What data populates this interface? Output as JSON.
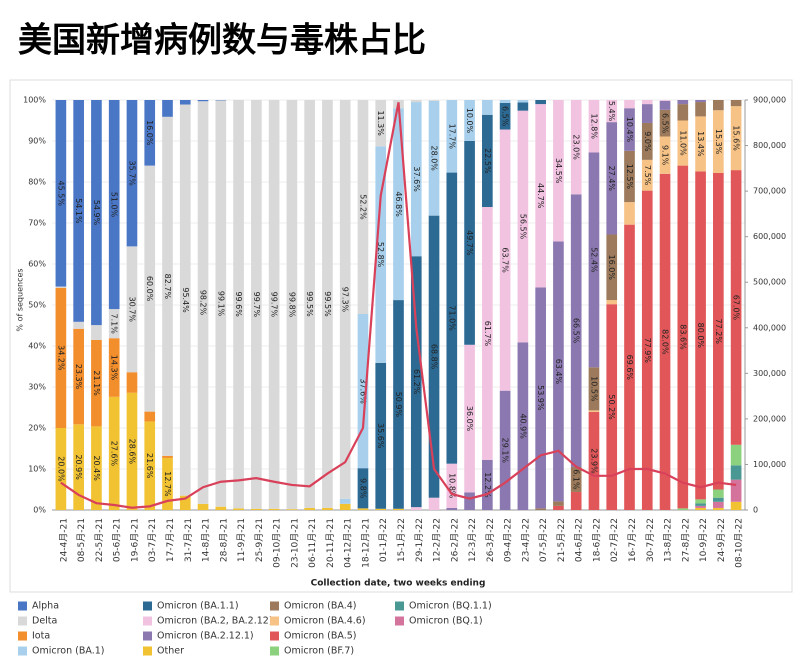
{
  "chart_data": {
    "type": "stacked_bar_line",
    "title": "美国新增病例数与毒株占比",
    "ylabel": "% of sequences",
    "xlabel": "Collection date, two weeks ending",
    "categories": [
      "24-4月-21",
      "08-5月-21",
      "22-5月-21",
      "05-6月-21",
      "19-6月-21",
      "03-7月-21",
      "17-7月-21",
      "31-7月-21",
      "14-8月-21",
      "28-8月-21",
      "11-9月-21",
      "25-9月-21",
      "09-10月-21",
      "23-10月-21",
      "06-11月-21",
      "20-11月-21",
      "04-12月-21",
      "18-12月-21",
      "01-1月-22",
      "15-1月-22",
      "29-1月-22",
      "12-2月-22",
      "26-2月-22",
      "12-3月-22",
      "26-3月-22",
      "09-4月-22",
      "23-4月-22",
      "07-5月-22",
      "21-5月-22",
      "04-6月-22",
      "18-6月-22",
      "02-7月-22",
      "16-7月-22",
      "30-7月-22",
      "13-8月-22",
      "27-8月-22",
      "10-9月-22",
      "24-9月-22",
      "08-10月-22"
    ],
    "ylim": [
      0,
      100
    ],
    "yticks": [
      {
        "value": 0,
        "label": "0%"
      },
      {
        "value": 10,
        "label": "10%"
      },
      {
        "value": 20,
        "label": "20%"
      },
      {
        "value": 30,
        "label": "30%"
      },
      {
        "value": 40,
        "label": "40%"
      },
      {
        "value": 50,
        "label": "50%"
      },
      {
        "value": 60,
        "label": "60%"
      },
      {
        "value": 70,
        "label": "70%"
      },
      {
        "value": 80,
        "label": "80%"
      },
      {
        "value": 90,
        "label": "90%"
      },
      {
        "value": 100,
        "label": "100%"
      }
    ],
    "y2lim": [
      0,
      900000
    ],
    "y2ticks": [
      0,
      {
        "value": 100000,
        "label": "100,000"
      },
      {
        "value": 200000,
        "label": "200,000"
      },
      {
        "value": 300000,
        "label": "300,000"
      },
      {
        "value": 400000,
        "label": "400,000"
      },
      {
        "value": 500000,
        "label": "500,000"
      },
      {
        "value": 600000,
        "label": "600,000"
      },
      {
        "value": 700000,
        "label": "700,000"
      },
      {
        "value": 800000,
        "label": "800,000"
      },
      {
        "value": 900000,
        "label": "900,000"
      }
    ],
    "series": [
      {
        "name": "Alpha",
        "color": "#4a76c6",
        "values": [
          45.5,
          54.1,
          54.9,
          51.0,
          35.7,
          16.0,
          4.1,
          1.1,
          0.3,
          0.1,
          0,
          0,
          0,
          0,
          0,
          0,
          0,
          0,
          0,
          0,
          0,
          0,
          0,
          0,
          0,
          0,
          0,
          0,
          0,
          0,
          0,
          0,
          0,
          0,
          0,
          0,
          0,
          0,
          0
        ],
        "value_labels": [
          "45.5%",
          "54.1%",
          "54.9%",
          "51.0%",
          "35.7%",
          "16.0%",
          null,
          null,
          null,
          null,
          null,
          null,
          null,
          null,
          null,
          null,
          null,
          null,
          null,
          null,
          null,
          null,
          null,
          null,
          null,
          null,
          null,
          null,
          null,
          null,
          null,
          null,
          null,
          null,
          null,
          null,
          null,
          null,
          null
        ]
      },
      {
        "name": "Delta",
        "color": "#d9d9d9",
        "values": [
          0.3,
          1.7,
          3.6,
          7.1,
          30.7,
          60.0,
          82.7,
          95.4,
          98.2,
          99.1,
          99.6,
          99.7,
          99.7,
          99.8,
          99.5,
          99.5,
          97.3,
          52.2,
          11.3,
          2.0,
          0.5,
          0.2,
          0,
          0,
          0,
          0,
          0,
          0,
          0,
          0,
          0,
          0,
          0,
          0,
          0,
          0,
          0,
          0,
          0
        ],
        "value_labels": [
          null,
          null,
          null,
          "7.1%",
          "30.7%",
          "60.0%",
          "82.7%",
          "95.4%",
          "98.2%",
          "99.1%",
          "99.6%",
          "99.7%",
          "99.7%",
          "99.8%",
          "99.5%",
          "99.5%",
          "97.3%",
          "52.2%",
          "11.3%",
          null,
          null,
          null,
          null,
          null,
          null,
          null,
          null,
          null,
          null,
          null,
          null,
          null,
          null,
          null,
          null,
          null,
          null,
          null,
          null
        ]
      },
      {
        "name": "Iota",
        "color": "#f28e2b",
        "values": [
          34.2,
          23.3,
          21.1,
          14.3,
          5.0,
          2.4,
          0.5,
          0,
          0,
          0,
          0,
          0,
          0,
          0,
          0,
          0,
          0,
          0,
          0,
          0,
          0,
          0,
          0,
          0,
          0,
          0,
          0,
          0,
          0,
          0,
          0,
          0,
          0,
          0,
          0,
          0,
          0,
          0,
          0
        ],
        "value_labels": [
          "34.2%",
          "23.3%",
          "21.1%",
          "14.3%",
          null,
          null,
          null,
          null,
          null,
          null,
          null,
          null,
          null,
          null,
          null,
          null,
          null,
          null,
          null,
          null,
          null,
          null,
          null,
          null,
          null,
          null,
          null,
          null,
          null,
          null,
          null,
          null,
          null,
          null,
          null,
          null,
          null,
          null,
          null
        ]
      },
      {
        "name": "Omicron (BA.1)",
        "color": "#a8d0ec",
        "values": [
          0,
          0,
          0,
          0,
          0,
          0,
          0,
          0,
          0,
          0,
          0,
          0,
          0,
          0,
          0,
          0,
          1.2,
          37.6,
          52.8,
          46.8,
          37.6,
          28.0,
          17.7,
          10.0,
          3.6,
          0.7,
          0.6,
          0,
          0,
          0,
          0,
          0,
          0,
          0,
          0,
          0,
          0,
          0,
          0
        ],
        "value_labels": [
          null,
          null,
          null,
          null,
          null,
          null,
          null,
          null,
          null,
          null,
          null,
          null,
          null,
          null,
          null,
          null,
          null,
          "37.6%",
          "52.8%",
          "46.8%",
          "37.6%",
          "28.0%",
          "17.7%",
          "10.0%",
          null,
          null,
          null,
          null,
          null,
          null,
          null,
          null,
          null,
          null,
          null,
          null,
          null,
          null,
          null
        ]
      },
      {
        "name": "Omicron (BA.1.1)",
        "color": "#2c6a94",
        "values": [
          0,
          0,
          0,
          0,
          0,
          0,
          0,
          0,
          0,
          0,
          0,
          0,
          0,
          0,
          0,
          0,
          0,
          9.8,
          35.6,
          50.9,
          61.2,
          68.8,
          71.0,
          49.7,
          22.5,
          6.5,
          2.0,
          1.0,
          0,
          0,
          0,
          0,
          0,
          0,
          0,
          0,
          0,
          0,
          0
        ],
        "value_labels": [
          null,
          null,
          null,
          null,
          null,
          null,
          null,
          null,
          null,
          null,
          null,
          null,
          null,
          null,
          null,
          null,
          null,
          "9.8%",
          "35.6%",
          "50.9%",
          "61.2%",
          "68.8%",
          "71.0%",
          "49.7%",
          "22.5%",
          "6.5%",
          null,
          null,
          null,
          null,
          null,
          null,
          null,
          null,
          null,
          null,
          null,
          null,
          null
        ]
      },
      {
        "name": "Omicron (BA.2, BA.2.12)",
        "color": "#f1c3e1",
        "values": [
          0,
          0,
          0,
          0,
          0,
          0,
          0,
          0,
          0,
          0,
          0,
          0,
          0,
          0,
          0,
          0,
          0,
          0,
          0,
          0,
          0.7,
          3.0,
          10.8,
          36.0,
          61.7,
          63.7,
          56.5,
          44.7,
          34.5,
          23.0,
          12.8,
          5.4,
          2.0,
          1.0,
          0.2,
          0,
          0,
          0,
          0
        ],
        "value_labels": [
          null,
          null,
          null,
          null,
          null,
          null,
          null,
          null,
          null,
          null,
          null,
          null,
          null,
          null,
          null,
          null,
          null,
          null,
          null,
          null,
          null,
          null,
          "10.8%",
          "36.0%",
          "61.7%",
          "63.7%",
          "56.5%",
          "44.7%",
          "34.5%",
          "23.0%",
          "12.8%",
          "5.4%",
          null,
          null,
          null,
          null,
          null,
          null,
          null
        ]
      },
      {
        "name": "Omicron (BA.2.12.1)",
        "color": "#8b78b0",
        "values": [
          0,
          0,
          0,
          0,
          0,
          0,
          0,
          0,
          0,
          0,
          0,
          0,
          0,
          0,
          0,
          0,
          0,
          0,
          0,
          0,
          0,
          0,
          0.5,
          4.3,
          12.2,
          29.1,
          40.9,
          53.9,
          63.4,
          66.5,
          52.4,
          27.4,
          10.4,
          4.6,
          2.2,
          1.0,
          0.5,
          0,
          0
        ],
        "value_labels": [
          null,
          null,
          null,
          null,
          null,
          null,
          null,
          null,
          null,
          null,
          null,
          null,
          null,
          null,
          null,
          null,
          null,
          null,
          null,
          null,
          null,
          null,
          null,
          null,
          "12.2%",
          "29.1%",
          "40.9%",
          "53.9%",
          "63.4%",
          "66.5%",
          "52.4%",
          "27.4%",
          "10.4%",
          null,
          null,
          null,
          null,
          null,
          null
        ]
      },
      {
        "name": "Other",
        "color": "#f1c232",
        "values": [
          20.0,
          20.9,
          20.4,
          27.6,
          28.6,
          21.6,
          12.7,
          3.5,
          1.5,
          0.8,
          0.4,
          0.3,
          0.3,
          0.2,
          0.5,
          0.5,
          1.5,
          0.4,
          0.3,
          0.3,
          0,
          0,
          0,
          0,
          0,
          0,
          0,
          0,
          0,
          0,
          0,
          0,
          0,
          0,
          0,
          0,
          0.5,
          0.5,
          2.0
        ],
        "value_labels": [
          "20.0%",
          "20.9%",
          "20.4%",
          "27.6%",
          "28.6%",
          "21.6%",
          "12.7%",
          null,
          null,
          null,
          null,
          null,
          null,
          null,
          null,
          null,
          null,
          null,
          null,
          null,
          null,
          null,
          null,
          null,
          null,
          null,
          null,
          null,
          null,
          null,
          null,
          null,
          null,
          null,
          null,
          null,
          null,
          null,
          null
        ]
      },
      {
        "name": "Omicron (BA.4)",
        "color": "#9c7a5b",
        "values": [
          0,
          0,
          0,
          0,
          0,
          0,
          0,
          0,
          0,
          0,
          0,
          0,
          0,
          0,
          0,
          0,
          0,
          0,
          0,
          0,
          0,
          0,
          0,
          0,
          0,
          0,
          0,
          0.4,
          1.1,
          6.1,
          10.5,
          16.0,
          12.5,
          9.0,
          6.5,
          4.0,
          3.5,
          2.5,
          1.5
        ],
        "value_labels": [
          null,
          null,
          null,
          null,
          null,
          null,
          null,
          null,
          null,
          null,
          null,
          null,
          null,
          null,
          null,
          null,
          null,
          null,
          null,
          null,
          null,
          null,
          null,
          null,
          null,
          null,
          null,
          null,
          null,
          "6.1%",
          "10.5%",
          "16.0%",
          "12.5%",
          "9.0%",
          "6.5%",
          null,
          null,
          null,
          null
        ]
      },
      {
        "name": "Omicron (BA.4.6)",
        "color": "#f7c285",
        "values": [
          0,
          0,
          0,
          0,
          0,
          0,
          0,
          0,
          0,
          0,
          0,
          0,
          0,
          0,
          0,
          0,
          0,
          0,
          0,
          0,
          0,
          0,
          0,
          0,
          0,
          0,
          0,
          0,
          0,
          0,
          0.4,
          1.0,
          5.5,
          7.5,
          9.1,
          11.0,
          13.4,
          15.3,
          15.6
        ],
        "value_labels": [
          null,
          null,
          null,
          null,
          null,
          null,
          null,
          null,
          null,
          null,
          null,
          null,
          null,
          null,
          null,
          null,
          null,
          null,
          null,
          null,
          null,
          null,
          null,
          null,
          null,
          null,
          null,
          null,
          null,
          null,
          null,
          null,
          null,
          "7.5%",
          "9.1%",
          "11.0%",
          "13.4%",
          "15.3%",
          "15.6%"
        ]
      },
      {
        "name": "Omicron (BA.5)",
        "color": "#e15759",
        "values": [
          0,
          0,
          0,
          0,
          0,
          0,
          0,
          0,
          0,
          0,
          0,
          0,
          0,
          0,
          0,
          0,
          0,
          0,
          0,
          0,
          0,
          0,
          0,
          0,
          0,
          0,
          0,
          0,
          1.0,
          4.4,
          23.9,
          50.2,
          69.6,
          77.9,
          82.0,
          83.6,
          80.0,
          77.2,
          67.0
        ],
        "value_labels": [
          null,
          null,
          null,
          null,
          null,
          null,
          null,
          null,
          null,
          null,
          null,
          null,
          null,
          null,
          null,
          null,
          null,
          null,
          null,
          null,
          null,
          null,
          null,
          null,
          null,
          null,
          null,
          null,
          null,
          null,
          "23.9%",
          "50.2%",
          "69.6%",
          "77.9%",
          "82.0%",
          "83.6%",
          "80.0%",
          "77.2%",
          "67.0%"
        ]
      },
      {
        "name": "Omicron (BF.7)",
        "color": "#8cd17d",
        "values": [
          0,
          0,
          0,
          0,
          0,
          0,
          0,
          0,
          0,
          0,
          0,
          0,
          0,
          0,
          0,
          0,
          0,
          0,
          0,
          0,
          0,
          0,
          0,
          0,
          0,
          0,
          0,
          0,
          0,
          0,
          0,
          0,
          0,
          0,
          0,
          0.4,
          1.0,
          2.0,
          5.0
        ]
      },
      {
        "name": "Omicron (BQ.1.1)",
        "color": "#499894",
        "values": [
          0,
          0,
          0,
          0,
          0,
          0,
          0,
          0,
          0,
          0,
          0,
          0,
          0,
          0,
          0,
          0,
          0,
          0,
          0,
          0,
          0,
          0,
          0,
          0,
          0,
          0,
          0,
          0,
          0,
          0,
          0,
          0,
          0,
          0,
          0,
          0,
          0.6,
          1.0,
          3.5
        ]
      },
      {
        "name": "Omicron (BQ.1)",
        "color": "#d4739b",
        "values": [
          0,
          0,
          0,
          0,
          0,
          0,
          0,
          0,
          0,
          0,
          0,
          0,
          0,
          0,
          0,
          0,
          0,
          0,
          0,
          0,
          0,
          0,
          0,
          0,
          0,
          0,
          0,
          0,
          0,
          0,
          0,
          0,
          0,
          0,
          0,
          0,
          0.5,
          1.5,
          5.4
        ]
      }
    ],
    "line": {
      "axis": "y2",
      "color": "#d9415a",
      "values": [
        60000,
        33000,
        15000,
        11000,
        5000,
        8000,
        20000,
        25000,
        50000,
        62000,
        65000,
        70000,
        62000,
        55000,
        52000,
        80000,
        105000,
        180000,
        690000,
        895000,
        400000,
        90000,
        35000,
        25000,
        35000,
        60000,
        90000,
        120000,
        130000,
        95000,
        75000,
        75000,
        90000,
        90000,
        80000,
        60000,
        50000,
        60000,
        55000
      ]
    },
    "grid": true
  }
}
